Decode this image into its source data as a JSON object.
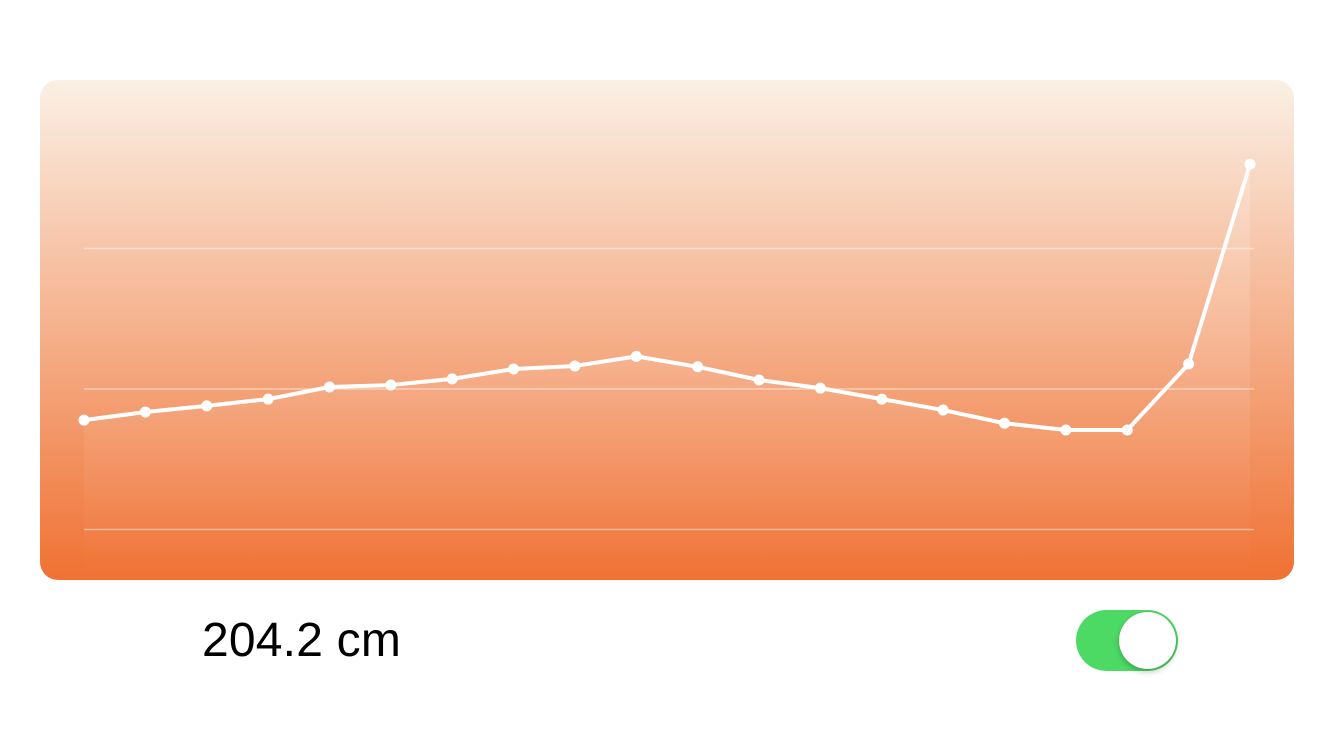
{
  "chart_data": {
    "type": "line",
    "x": [
      1,
      2,
      3,
      4,
      5,
      6,
      7,
      8,
      9,
      10,
      11,
      12,
      13,
      14,
      15,
      16,
      17,
      18,
      19,
      20
    ],
    "values": [
      38.9,
      41.8,
      44.0,
      46.4,
      50.7,
      51.4,
      53.6,
      57.1,
      58.2,
      61.6,
      57.9,
      53.2,
      50.3,
      46.4,
      42.5,
      37.8,
      35.4,
      35.4,
      58.9,
      130.0
    ],
    "ylim": [
      -18,
      160
    ],
    "grid_values": [
      0,
      50,
      100
    ],
    "colors": {
      "gradient_top": "#faf0e5",
      "gradient_bottom": "#f07133",
      "line": "#ffffff",
      "grid": "rgba(255,255,255,0.45)"
    }
  },
  "measurement": {
    "value_text": "204.2 cm"
  },
  "toggle": {
    "on": true,
    "on_color": "#4cd964"
  }
}
